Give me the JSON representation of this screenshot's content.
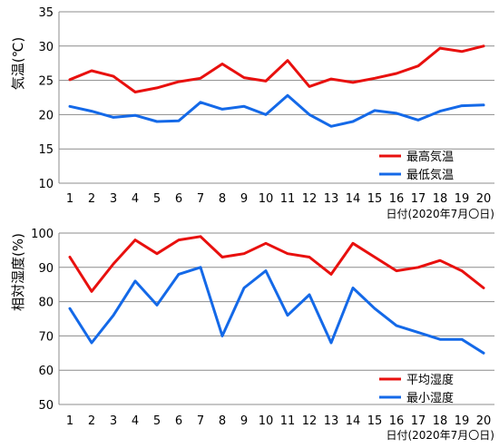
{
  "chart_data": [
    {
      "type": "line",
      "ylabel": "気温(℃)",
      "xlabel": "日付(2020年7月〇日)",
      "ylim": [
        10,
        35
      ],
      "yticks": [
        10,
        15,
        20,
        25,
        30,
        35
      ],
      "x": [
        1,
        2,
        3,
        4,
        5,
        6,
        7,
        8,
        9,
        10,
        11,
        12,
        13,
        14,
        15,
        16,
        17,
        18,
        19,
        20
      ],
      "grid": true,
      "legend_position": "bottom-right",
      "series": [
        {
          "name": "最高気温",
          "color": "#e8100e",
          "values": [
            25.1,
            26.4,
            25.6,
            23.3,
            23.9,
            24.8,
            25.3,
            27.4,
            25.4,
            24.9,
            27.9,
            24.1,
            25.2,
            24.7,
            25.3,
            26.0,
            27.1,
            29.7,
            29.2,
            30.0
          ]
        },
        {
          "name": "最低気温",
          "color": "#1469e8",
          "values": [
            21.2,
            20.5,
            19.6,
            19.9,
            19.0,
            19.1,
            21.8,
            20.8,
            21.2,
            20.0,
            22.8,
            20.0,
            18.3,
            19.0,
            20.6,
            20.2,
            19.2,
            20.5,
            21.3,
            21.4
          ]
        }
      ]
    },
    {
      "type": "line",
      "ylabel": "相対湿度(%)",
      "xlabel": "日付(2020年7月〇日)",
      "ylim": [
        50,
        100
      ],
      "yticks": [
        50,
        60,
        70,
        80,
        90,
        100
      ],
      "x": [
        1,
        2,
        3,
        4,
        5,
        6,
        7,
        8,
        9,
        10,
        11,
        12,
        13,
        14,
        15,
        16,
        17,
        18,
        19,
        20
      ],
      "grid": true,
      "legend_position": "bottom-right",
      "series": [
        {
          "name": "平均湿度",
          "color": "#e8100e",
          "values": [
            93,
            83,
            91,
            98,
            94,
            98,
            99,
            93,
            94,
            97,
            94,
            93,
            88,
            97,
            93,
            89,
            90,
            92,
            89,
            84
          ]
        },
        {
          "name": "最小湿度",
          "color": "#1469e8",
          "values": [
            78,
            68,
            76,
            86,
            79,
            88,
            90,
            70,
            84,
            89,
            76,
            82,
            68,
            84,
            78,
            73,
            71,
            69,
            69,
            65
          ]
        }
      ]
    }
  ]
}
